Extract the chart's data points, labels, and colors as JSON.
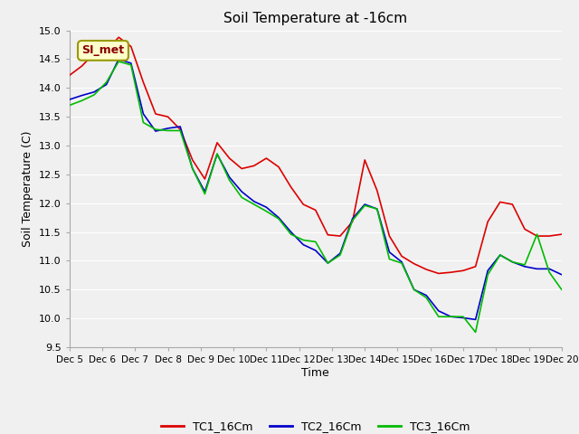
{
  "title": "Soil Temperature at -16cm",
  "xlabel": "Time",
  "ylabel": "Soil Temperature (C)",
  "ylim": [
    9.5,
    15.0
  ],
  "fig_facecolor": "#f0f0f0",
  "plot_bg_color": "#f0f0f0",
  "grid_color": "#ffffff",
  "annotation_text": "SI_met",
  "annotation_bg": "#ffffcc",
  "annotation_border": "#999900",
  "annotation_text_color": "#880000",
  "tc1_color": "#dd0000",
  "tc2_color": "#0000cc",
  "tc3_color": "#00bb00",
  "legend_labels": [
    "TC1_16Cm",
    "TC2_16Cm",
    "TC3_16Cm"
  ],
  "xtick_labels": [
    "Dec 5",
    "Dec 6",
    "Dec 7",
    "Dec 8",
    "Dec 9",
    "Dec 10",
    "Dec 11",
    "Dec 12",
    "Dec 13",
    "Dec 14",
    "Dec 15",
    "Dec 16",
    "Dec 17",
    "Dec 18",
    "Dec 19",
    "Dec 20"
  ],
  "yticks": [
    9.5,
    10.0,
    10.5,
    11.0,
    11.5,
    12.0,
    12.5,
    13.0,
    13.5,
    14.0,
    14.5,
    15.0
  ],
  "tc1_y": [
    14.22,
    14.38,
    14.6,
    14.65,
    14.88,
    14.72,
    14.1,
    13.55,
    13.5,
    13.28,
    12.75,
    12.42,
    13.05,
    12.78,
    12.6,
    12.65,
    12.78,
    12.63,
    12.28,
    11.98,
    11.88,
    11.45,
    11.43,
    11.68,
    12.75,
    12.22,
    11.43,
    11.08,
    10.95,
    10.85,
    10.78,
    10.8,
    10.83,
    10.9,
    11.68,
    12.02,
    11.98,
    11.55,
    11.43,
    11.43,
    11.46
  ],
  "tc2_y": [
    13.8,
    13.87,
    13.93,
    14.06,
    14.5,
    14.43,
    13.55,
    13.25,
    13.3,
    13.33,
    12.6,
    12.2,
    12.85,
    12.45,
    12.2,
    12.03,
    11.93,
    11.75,
    11.5,
    11.28,
    11.18,
    10.96,
    11.13,
    11.73,
    11.98,
    11.9,
    11.15,
    10.98,
    10.5,
    10.4,
    10.13,
    10.03,
    10.01,
    9.98,
    10.83,
    11.1,
    10.98,
    10.9,
    10.86,
    10.86,
    10.76
  ],
  "tc3_y": [
    13.7,
    13.78,
    13.88,
    14.1,
    14.46,
    14.4,
    13.4,
    13.28,
    13.26,
    13.26,
    12.6,
    12.16,
    12.86,
    12.4,
    12.1,
    11.98,
    11.86,
    11.73,
    11.46,
    11.36,
    11.33,
    10.96,
    11.1,
    11.7,
    11.96,
    11.9,
    11.03,
    10.96,
    10.5,
    10.36,
    10.03,
    10.03,
    10.03,
    9.76,
    10.76,
    11.1,
    10.98,
    10.93,
    11.46,
    10.8,
    10.5
  ]
}
